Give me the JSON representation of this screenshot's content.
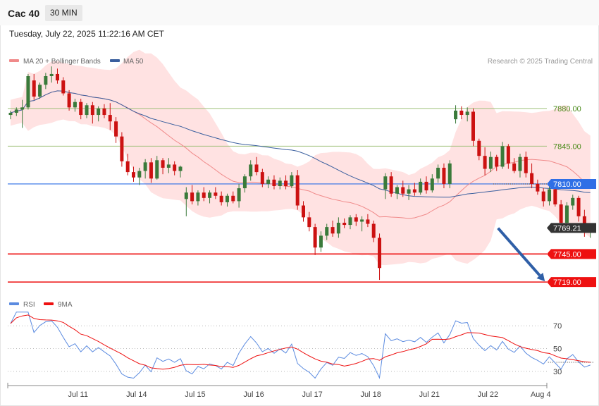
{
  "header": {
    "symbol": "Cac 40",
    "interval": "30 MIN",
    "datetime": "Tuesday, July 22, 2025 11:22:16 AM CET"
  },
  "legend": {
    "ma20_label": "MA 20 + Bollinger Bands",
    "ma50_label": "MA 50",
    "copyright": "Research © 2025 Trading Central",
    "rsi_label": "RSI",
    "rsi_ma_label": "9MA"
  },
  "colors": {
    "up": "#3a7a3a",
    "down": "#cc1111",
    "ma20": "#f08a8a",
    "ma50": "#3a5f9e",
    "band": "#ffe2e2",
    "support": "#ee1111",
    "pivot": "#2f6fe6",
    "resistance": "#9fc07a",
    "arrow": "#2f5fa7",
    "last": "#333333"
  },
  "chart_data": [
    {
      "type": "candlestick",
      "x_axis": {
        "ticks": [
          "Jul 11",
          "Jul 14",
          "Jul 15",
          "Jul 16",
          "Jul 17",
          "Jul 18",
          "Jul 21",
          "Jul 22",
          "Aug 4"
        ],
        "tick_index": [
          12,
          22,
          32,
          42,
          52,
          62,
          72,
          82,
          91
        ]
      },
      "ylim": [
        7706,
        7910
      ],
      "levels": [
        {
          "value": 7880.0,
          "label": "7880.00",
          "kind": "resistance"
        },
        {
          "value": 7845.0,
          "label": "7845.00",
          "kind": "resistance"
        },
        {
          "value": 7810.0,
          "label": "7810.00",
          "kind": "pivot"
        },
        {
          "value": 7769.21,
          "label": "7769.21",
          "kind": "last"
        },
        {
          "value": 7745.0,
          "label": "7745.00",
          "kind": "support"
        },
        {
          "value": 7719.0,
          "label": "7719.00",
          "kind": "support"
        }
      ],
      "forecast_arrow": {
        "from": [
          83,
          7769
        ],
        "to": [
          91,
          7719
        ]
      },
      "candles": [
        [
          7874,
          7878,
          7870,
          7876
        ],
        [
          7876,
          7881,
          7873,
          7879
        ],
        [
          7879,
          7888,
          7862,
          7881
        ],
        [
          7881,
          7912,
          7879,
          7910
        ],
        [
          7906,
          7912,
          7888,
          7891
        ],
        [
          7891,
          7904,
          7889,
          7902
        ],
        [
          7902,
          7913,
          7898,
          7910
        ],
        [
          7910,
          7919,
          7904,
          7912
        ],
        [
          7912,
          7917,
          7903,
          7906
        ],
        [
          7906,
          7909,
          7892,
          7894
        ],
        [
          7894,
          7897,
          7878,
          7881
        ],
        [
          7881,
          7889,
          7877,
          7886
        ],
        [
          7886,
          7889,
          7870,
          7874
        ],
        [
          7874,
          7885,
          7871,
          7883
        ],
        [
          7883,
          7886,
          7866,
          7874
        ],
        [
          7874,
          7882,
          7868,
          7880
        ],
        [
          7880,
          7884,
          7871,
          7874
        ],
        [
          7874,
          7885,
          7860,
          7868
        ],
        [
          7868,
          7872,
          7848,
          7854
        ],
        [
          7854,
          7858,
          7826,
          7831
        ],
        [
          7831,
          7838,
          7818,
          7821
        ],
        [
          7821,
          7826,
          7812,
          7816
        ],
        [
          7816,
          7825,
          7809,
          7822
        ],
        [
          7822,
          7833,
          7815,
          7830
        ],
        [
          7830,
          7834,
          7811,
          7815
        ],
        [
          7815,
          7836,
          7814,
          7832
        ],
        [
          7832,
          7834,
          7819,
          7825
        ],
        [
          7825,
          7834,
          7820,
          7828
        ],
        [
          7828,
          7831,
          7818,
          7822
        ],
        [
          7822,
          7827,
          7816,
          7826
        ],
        [
          7796,
          7807,
          7780,
          7802
        ],
        [
          7802,
          7809,
          7791,
          7794
        ],
        [
          7794,
          7804,
          7790,
          7802
        ],
        [
          7802,
          7807,
          7794,
          7797
        ],
        [
          7797,
          7804,
          7792,
          7802
        ],
        [
          7802,
          7807,
          7796,
          7799
        ],
        [
          7799,
          7803,
          7790,
          7793
        ],
        [
          7793,
          7801,
          7789,
          7799
        ],
        [
          7799,
          7803,
          7792,
          7794
        ],
        [
          7794,
          7810,
          7788,
          7806
        ],
        [
          7806,
          7819,
          7802,
          7817
        ],
        [
          7817,
          7832,
          7813,
          7828
        ],
        [
          7828,
          7835,
          7818,
          7821
        ],
        [
          7821,
          7824,
          7807,
          7810
        ],
        [
          7810,
          7817,
          7806,
          7814
        ],
        [
          7814,
          7818,
          7805,
          7808
        ],
        [
          7808,
          7816,
          7805,
          7813
        ],
        [
          7813,
          7818,
          7805,
          7808
        ],
        [
          7808,
          7821,
          7806,
          7818
        ],
        [
          7818,
          7823,
          7786,
          7790
        ],
        [
          7790,
          7794,
          7775,
          7779
        ],
        [
          7779,
          7784,
          7766,
          7770
        ],
        [
          7770,
          7773,
          7744,
          7751
        ],
        [
          7751,
          7766,
          7747,
          7762
        ],
        [
          7762,
          7773,
          7758,
          7770
        ],
        [
          7770,
          7776,
          7761,
          7764
        ],
        [
          7764,
          7779,
          7760,
          7774
        ],
        [
          7774,
          7778,
          7769,
          7772
        ],
        [
          7772,
          7781,
          7768,
          7779
        ],
        [
          7779,
          7782,
          7771,
          7775
        ],
        [
          7775,
          7780,
          7766,
          7777
        ],
        [
          7777,
          7782,
          7770,
          7773
        ],
        [
          7773,
          7776,
          7756,
          7760
        ],
        [
          7760,
          7764,
          7721,
          7732
        ],
        [
          7805,
          7820,
          7796,
          7817
        ],
        [
          7817,
          7821,
          7798,
          7801
        ],
        [
          7801,
          7809,
          7796,
          7807
        ],
        [
          7807,
          7813,
          7798,
          7801
        ],
        [
          7801,
          7809,
          7795,
          7805
        ],
        [
          7805,
          7811,
          7799,
          7802
        ],
        [
          7802,
          7815,
          7800,
          7812
        ],
        [
          7812,
          7817,
          7801,
          7804
        ],
        [
          7804,
          7819,
          7802,
          7815
        ],
        [
          7815,
          7828,
          7811,
          7825
        ],
        [
          7825,
          7829,
          7806,
          7810
        ],
        [
          7810,
          7832,
          7806,
          7829
        ],
        [
          7870,
          7883,
          7866,
          7878
        ],
        [
          7878,
          7882,
          7870,
          7874
        ],
        [
          7874,
          7881,
          7868,
          7877
        ],
        [
          7877,
          7880,
          7845,
          7850
        ],
        [
          7850,
          7852,
          7832,
          7836
        ],
        [
          7836,
          7844,
          7818,
          7824
        ],
        [
          7824,
          7840,
          7821,
          7835
        ],
        [
          7835,
          7837,
          7822,
          7826
        ],
        [
          7826,
          7849,
          7824,
          7845
        ],
        [
          7845,
          7847,
          7824,
          7829
        ],
        [
          7829,
          7834,
          7820,
          7822
        ],
        [
          7822,
          7838,
          7816,
          7835
        ],
        [
          7835,
          7840,
          7816,
          7820
        ],
        [
          7820,
          7829,
          7806,
          7810
        ],
        [
          7810,
          7814,
          7800,
          7803
        ],
        [
          7803,
          7806,
          7789,
          7794
        ],
        [
          7794,
          7808,
          7790,
          7805
        ],
        [
          7805,
          7810,
          7789,
          7791
        ],
        [
          7791,
          7795,
          7768,
          7774
        ],
        [
          7774,
          7793,
          7772,
          7790
        ],
        [
          7790,
          7800,
          7786,
          7797
        ],
        [
          7797,
          7799,
          7775,
          7780
        ],
        [
          7780,
          7786,
          7761,
          7766
        ],
        [
          7766,
          7771,
          7760,
          7769
        ]
      ]
    },
    {
      "type": "line",
      "name": "RSI",
      "ylim": [
        20,
        85
      ],
      "y_ticks": [
        70,
        50,
        30
      ]
    }
  ]
}
